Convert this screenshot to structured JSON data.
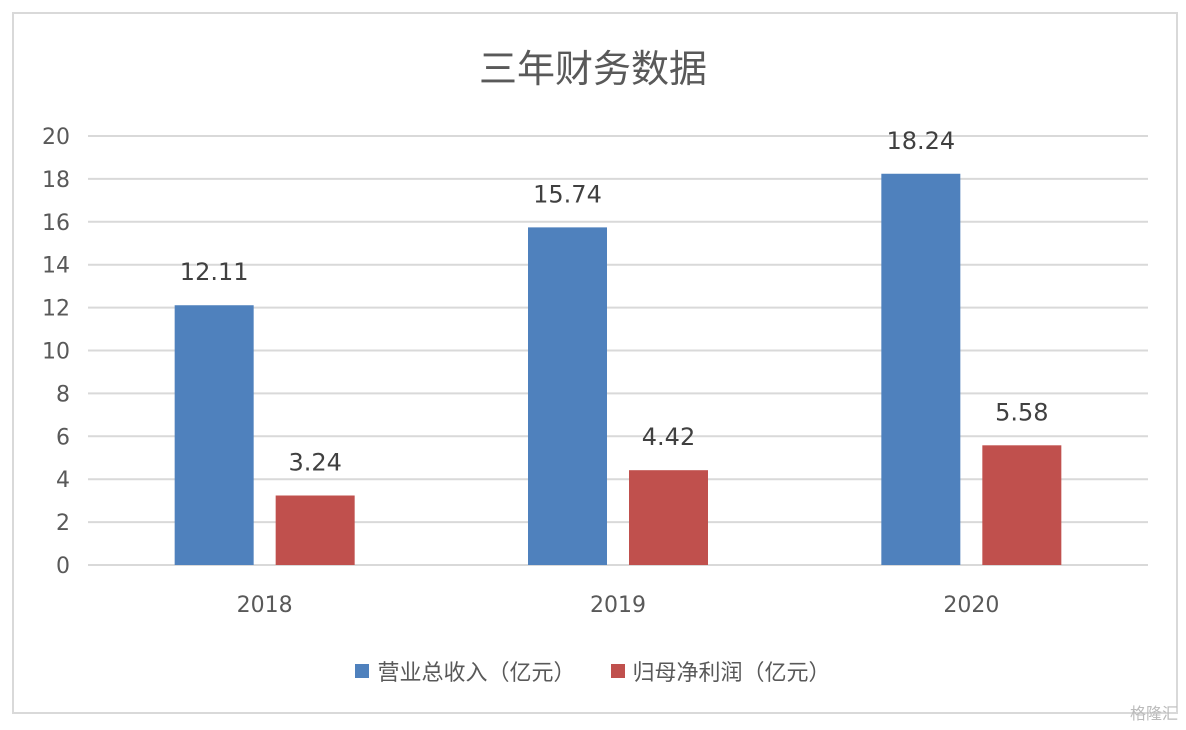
{
  "chart_data": {
    "type": "bar",
    "title": "三年财务数据",
    "categories": [
      "2018",
      "2019",
      "2020"
    ],
    "series": [
      {
        "name": "营业总收入（亿元）",
        "values": [
          12.11,
          15.74,
          18.24
        ],
        "color": "#4f81bd"
      },
      {
        "name": "归母净利润（亿元）",
        "values": [
          3.24,
          4.42,
          5.58
        ],
        "color": "#c0504d"
      }
    ],
    "ylim": [
      0,
      20
    ],
    "yticks": [
      0,
      2,
      4,
      6,
      8,
      10,
      12,
      14,
      16,
      18,
      20
    ],
    "grid": true,
    "legend": "bottom",
    "data_labels": true
  },
  "watermark": "格隆汇"
}
